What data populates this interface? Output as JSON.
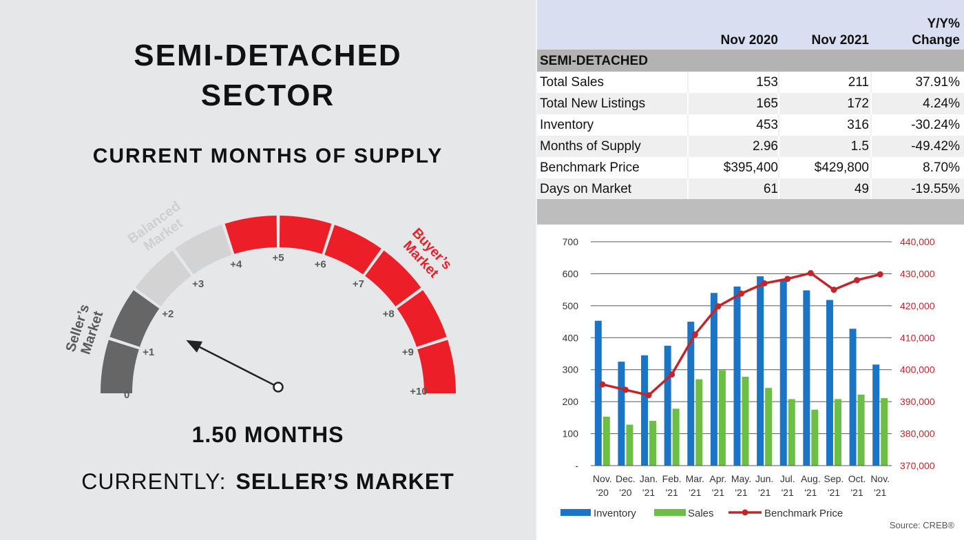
{
  "left": {
    "title_line1": "SEMI-DETACHED",
    "title_line2": "SECTOR",
    "subtitle": "CURRENT MONTHS OF SUPPLY",
    "value_text": "1.50 MONTHS",
    "status_label": "CURRENTLY:",
    "status_value": "SELLER’S MARKET",
    "gauge": {
      "value": 1.5,
      "min": 0,
      "max": 10,
      "tick_labels": [
        "0",
        "+1",
        "+2",
        "+3",
        "+4",
        "+5",
        "+6",
        "+7",
        "+8",
        "+9",
        "+10"
      ],
      "zones": [
        {
          "label_line1": "Seller’s",
          "label_line2": "Market",
          "from": 0,
          "to": 2,
          "color": "#666666"
        },
        {
          "label_line1": "Balanced",
          "label_line2": "Market",
          "from": 2,
          "to": 4,
          "color": "#d3d3d3"
        },
        {
          "label_line1": "Buyer’s",
          "label_line2": "Market",
          "from": 4,
          "to": 10,
          "color": "#ec1f28"
        }
      ]
    }
  },
  "table": {
    "headers": [
      "",
      "Nov 2020",
      "Nov 2021",
      "Y/Y%",
      "Change"
    ],
    "section": "SEMI-DETACHED",
    "rows": [
      [
        "Total Sales",
        "153",
        "211",
        "37.91%"
      ],
      [
        "Total New Listings",
        "165",
        "172",
        "4.24%"
      ],
      [
        "Inventory",
        "453",
        "316",
        "-30.24%"
      ],
      [
        "Months of Supply",
        "2.96",
        "1.5",
        "-49.42%"
      ],
      [
        "Benchmark Price",
        "$395,400",
        "$429,800",
        "8.70%"
      ],
      [
        "Days on Market",
        "61",
        "49",
        "-19.55%"
      ]
    ]
  },
  "chart_data": {
    "type": "bar",
    "categories": [
      [
        "Nov.",
        "'20"
      ],
      [
        "Dec.",
        "'20"
      ],
      [
        "Jan.",
        "'21"
      ],
      [
        "Feb.",
        "'21"
      ],
      [
        "Mar.",
        "'21"
      ],
      [
        "Apr.",
        "'21"
      ],
      [
        "May.",
        "'21"
      ],
      [
        "Jun.",
        "'21"
      ],
      [
        "Jul.",
        "'21"
      ],
      [
        "Aug.",
        "'21"
      ],
      [
        "Sep.",
        "'21"
      ],
      [
        "Oct.",
        "'21"
      ],
      [
        "Nov.",
        "'21"
      ]
    ],
    "series": [
      {
        "name": "Inventory",
        "type": "bar",
        "axis": "left",
        "color": "#1b75c6",
        "values": [
          453,
          325,
          345,
          375,
          450,
          540,
          560,
          592,
          580,
          548,
          518,
          428,
          316
        ]
      },
      {
        "name": "Sales",
        "type": "bar",
        "axis": "left",
        "color": "#6cbe45",
        "values": [
          153,
          128,
          140,
          178,
          270,
          298,
          278,
          243,
          208,
          175,
          208,
          222,
          211
        ]
      },
      {
        "name": "Benchmark Price",
        "type": "line",
        "axis": "right",
        "color": "#c0272d",
        "values": [
          395400,
          393700,
          392000,
          398500,
          411000,
          419800,
          423800,
          427000,
          428400,
          430200,
          425000,
          428000,
          429800
        ]
      }
    ],
    "ylim_left": [
      0,
      700
    ],
    "yticks_left": [
      "-",
      "100",
      "200",
      "300",
      "400",
      "500",
      "600",
      "700"
    ],
    "ylim_right": [
      370000,
      440000
    ],
    "yticks_right": [
      "370,000",
      "380,000",
      "390,000",
      "400,000",
      "410,000",
      "420,000",
      "430,000",
      "440,000"
    ],
    "grid": true,
    "legend_position": "bottom",
    "source": "Source: CREB®"
  }
}
